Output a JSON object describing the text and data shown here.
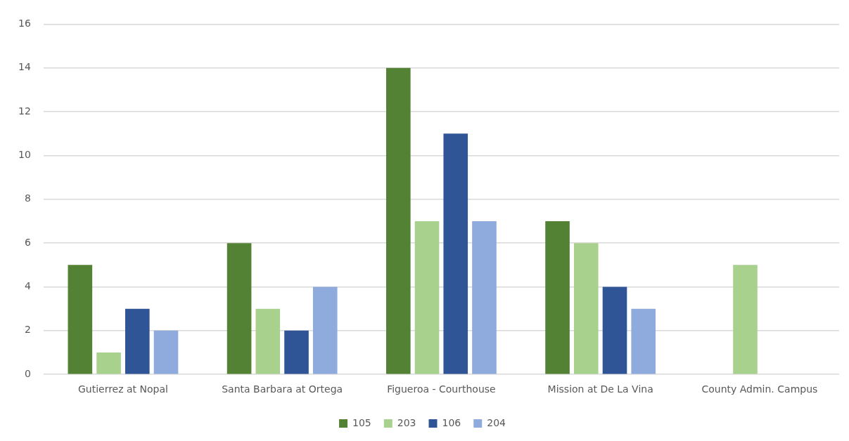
{
  "chart_data": {
    "type": "bar",
    "categories": [
      "Gutierrez at Nopal",
      "Santa Barbara at Ortega",
      "Figueroa - Courthouse",
      "Mission at De La Vina",
      "County Admin. Campus"
    ],
    "series": [
      {
        "name": "105",
        "color": "#548235",
        "values": [
          5,
          6,
          14,
          7,
          0
        ]
      },
      {
        "name": "203",
        "color": "#a9d18e",
        "values": [
          1,
          3,
          7,
          6,
          5
        ]
      },
      {
        "name": "106",
        "color": "#2f5597",
        "values": [
          3,
          2,
          11,
          4,
          0
        ]
      },
      {
        "name": "204",
        "color": "#8faadc",
        "values": [
          2,
          4,
          7,
          3,
          0
        ]
      }
    ],
    "ylim": [
      0,
      16
    ],
    "yticks": [
      0,
      2,
      4,
      6,
      8,
      10,
      12,
      14,
      16
    ],
    "grid": "y",
    "legend": "bottom"
  }
}
